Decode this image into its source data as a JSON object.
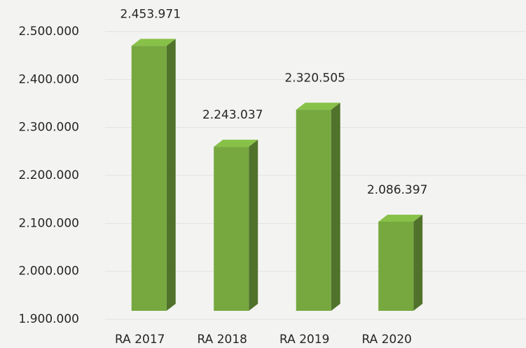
{
  "chart_data": {
    "type": "bar3d",
    "categories": [
      "RA 2017",
      "RA 2018",
      "RA 2019",
      "RA 2020"
    ],
    "values": [
      2453971,
      2243037,
      2320505,
      2086397
    ],
    "value_labels": [
      "2.453.971",
      "2.243.037",
      "2.320.505",
      "2.086.397"
    ],
    "color": "#76a83f",
    "ylim": [
      1900000,
      2500000
    ],
    "yticks": [
      {
        "value": 1900000,
        "label": "1.900.000"
      },
      {
        "value": 2000000,
        "label": "2.000.000"
      },
      {
        "value": 2100000,
        "label": "2.100.000"
      },
      {
        "value": 2200000,
        "label": "2.200.000"
      },
      {
        "value": 2300000,
        "label": "2.300.000"
      },
      {
        "value": 2400000,
        "label": "2.400.000"
      },
      {
        "value": 2500000,
        "label": "2.500.000"
      }
    ],
    "grid": true
  }
}
